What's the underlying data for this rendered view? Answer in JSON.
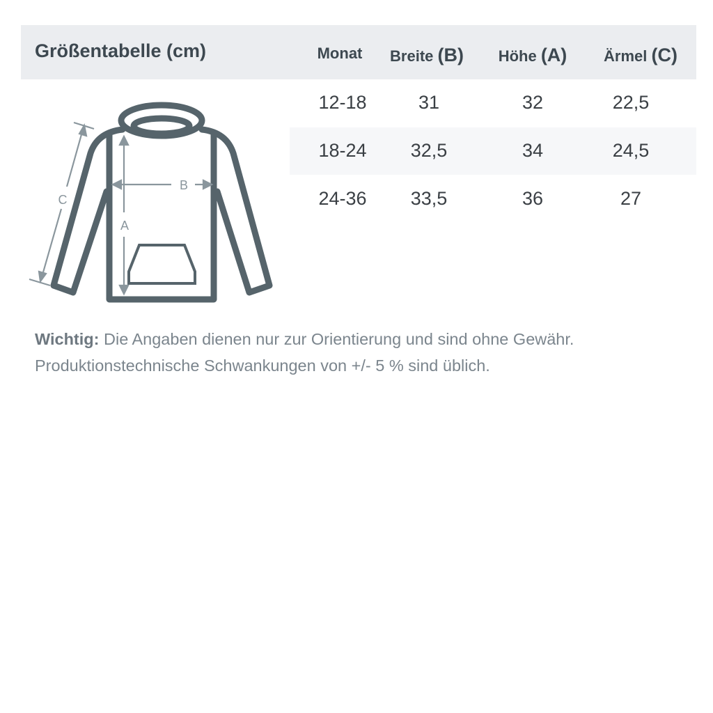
{
  "title": "Größentabelle (cm)",
  "columns": [
    {
      "label": "Monat",
      "letter": ""
    },
    {
      "label": "Breite",
      "letter": "(B)"
    },
    {
      "label": "Höhe",
      "letter": "(A)"
    },
    {
      "label": "Ärmel",
      "letter": "(C)"
    }
  ],
  "rows": [
    [
      "12-18",
      "31",
      "32",
      "22,5"
    ],
    [
      "18-24",
      "32,5",
      "34",
      "24,5"
    ],
    [
      "24-36",
      "33,5",
      "36",
      "27"
    ]
  ],
  "diagram": {
    "label_a": "A",
    "label_b": "B",
    "label_c": "C",
    "icon": "hoodie-icon"
  },
  "note": {
    "bold": "Wichtig:",
    "line1": " Die Angaben dienen nur zur Orientierung und sind ohne Gewähr.",
    "line2": "Produktionstechnische Schwankungen von +/- 5 % sind üblich."
  },
  "colors": {
    "header_bg": "#ebedf0",
    "outline": "#56646b",
    "measure": "#8a969d"
  }
}
